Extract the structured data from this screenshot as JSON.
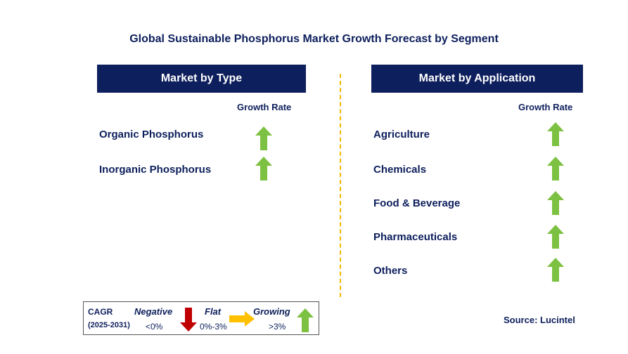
{
  "title": "Global Sustainable Phosphorus Market Growth Forecast by Segment",
  "left_panel": {
    "header": "Market by Type",
    "growth_rate_label": "Growth Rate",
    "items": [
      {
        "label": "Organic Phosphorus",
        "trend": "growing"
      },
      {
        "label": "Inorganic Phosphorus",
        "trend": "growing"
      }
    ]
  },
  "right_panel": {
    "header": "Market by Application",
    "growth_rate_label": "Growth Rate",
    "items": [
      {
        "label": "Agriculture",
        "trend": "growing"
      },
      {
        "label": "Chemicals",
        "trend": "growing"
      },
      {
        "label": "Food & Beverage",
        "trend": "growing"
      },
      {
        "label": "Pharmaceuticals",
        "trend": "growing"
      },
      {
        "label": "Others",
        "trend": "growing"
      }
    ]
  },
  "legend": {
    "cagr_label": "CAGR",
    "period": "(2025-2031)",
    "negative": {
      "label": "Negative",
      "range": "<0%",
      "icon": "down-arrow-icon",
      "color": "#c00000"
    },
    "flat": {
      "label": "Flat",
      "range": "0%-3%",
      "icon": "right-arrow-icon",
      "color": "#ffc000"
    },
    "growing": {
      "label": "Growing",
      "range": ">3%",
      "icon": "up-arrow-icon",
      "color": "#7dc142"
    }
  },
  "source": "Source: Lucintel",
  "colors": {
    "navy": "#0d1f5c",
    "green": "#7dc142",
    "divider": "#f2b800"
  }
}
